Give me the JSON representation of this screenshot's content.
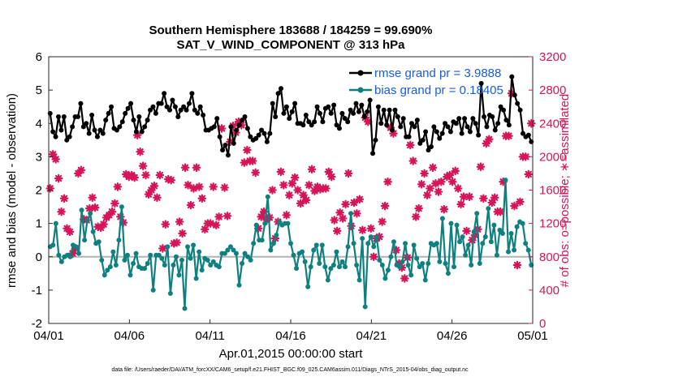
{
  "chart_data": {
    "type": "line",
    "title_line1": "Southern Hemisphere 183688 / 184259 = 99.690%",
    "title_line2": "SAT_V_WIND_COMPONENT @ 313 hPa",
    "ylabel_left": "rmse and bias (model - observation)",
    "ylabel_right": "# of obs: o=possible; ∗=assimilated",
    "xlabel": "Apr.01,2015 00:00:00 start",
    "footnote": "data file: /Users/raeder/DAI/ATM_forcXX/CAM6_setup/f.e21.FHIST_BGC.f09_025.CAM6assim.011/Diags_NTrS_2015-04/obs_diag_output.nc",
    "ylim_left": [
      -2,
      6
    ],
    "ylim_right": [
      0,
      3200
    ],
    "xlim": [
      0,
      30
    ],
    "yticks_left": [
      "-2",
      "-1",
      "0",
      "1",
      "2",
      "3",
      "4",
      "5",
      "6"
    ],
    "yticks_right": [
      "0",
      "400",
      "800",
      "1200",
      "1600",
      "2000",
      "2400",
      "2800",
      "3200"
    ],
    "xticks": [
      {
        "x": 0,
        "label": "04/01"
      },
      {
        "x": 5,
        "label": "04/06"
      },
      {
        "x": 10,
        "label": "04/11"
      },
      {
        "x": 15,
        "label": "04/16"
      },
      {
        "x": 20,
        "label": "04/21"
      },
      {
        "x": 25,
        "label": "04/26"
      },
      {
        "x": 30,
        "label": "05/01"
      }
    ],
    "legend": [
      "rmse grand pr = 3.9888",
      "bias grand pr = 0.18405"
    ],
    "colors": {
      "rmse": "#000000",
      "bias": "#0f8080",
      "obs": "#d6145a",
      "zero_line": "#b3b3b3"
    },
    "series": [
      {
        "name": "rmse grand pr = 3.9888",
        "axis": "left",
        "values": [
          4.3,
          3.75,
          3.6,
          4.2,
          3.8,
          4.2,
          3.5,
          3.6,
          3.9,
          4.2,
          4.2,
          4.6,
          3.9,
          4.0,
          3.7,
          4.25,
          3.8,
          3.6,
          3.8,
          3.7,
          4.1,
          4.3,
          4.5,
          3.85,
          3.8,
          3.9,
          4.05,
          4.3,
          4.45,
          4.6,
          4.1,
          3.75,
          4.2,
          3.75,
          3.9,
          4.1,
          4.4,
          4.5,
          4.3,
          4.6,
          4.6,
          4.9,
          4.5,
          4.4,
          4.7,
          4.5,
          4.2,
          4.4,
          4.5,
          4.4,
          4.6,
          4.9,
          4.4,
          4.3,
          4.5,
          4.25,
          3.8,
          3.8,
          3.85,
          3.9,
          4.15,
          3.6,
          3.2,
          3.35,
          3.05,
          3.9,
          3.4,
          3.8,
          3.95,
          4.1,
          4.2,
          3.85,
          3.6,
          3.5,
          3.55,
          3.65,
          3.8,
          3.7,
          3.45,
          3.7,
          4.6,
          4.2,
          4.9,
          5.05,
          4.3,
          4.5,
          4.15,
          4.35,
          4.6,
          4.0,
          4.0,
          3.95,
          4.25,
          4.05,
          3.95,
          4.05,
          4.5,
          4.3,
          4.05,
          4.45,
          4.5,
          4.3,
          4.55,
          3.95,
          3.85,
          4.3,
          4.15,
          4.05,
          4.4,
          4.3,
          4.6,
          4.35,
          4.55,
          4.2,
          4.35,
          4.7,
          3.1,
          3.5,
          4.5,
          4.0,
          4.4,
          3.95,
          4.4,
          3.8,
          4.4,
          4.2,
          3.9,
          4.15,
          3.6,
          3.6,
          4.0,
          3.9,
          4.1,
          3.4,
          3.5,
          3.75,
          3.2,
          3.3,
          3.9,
          3.75,
          3.55,
          3.7,
          4.0,
          3.9,
          3.75,
          4.05,
          4.0,
          4.15,
          3.7,
          4.15,
          3.9,
          3.75,
          4.15,
          4.0,
          3.65,
          5.2,
          4.2,
          3.9,
          4.25,
          4.2,
          3.8,
          4.0,
          4.5,
          4.4,
          4.1,
          3.95,
          5.4,
          4.85,
          4.6,
          4.4,
          3.7,
          3.6,
          3.65,
          3.45
        ]
      },
      {
        "name": "bias grand pr = 0.18405",
        "axis": "left",
        "values": [
          0.3,
          0.35,
          1.0,
          0.05,
          -0.15,
          0.0,
          0.05,
          0.0,
          0.35,
          0.3,
          0.1,
          1.4,
          0.5,
          1.1,
          1.3,
          0.75,
          0.4,
          0.45,
          -0.1,
          -0.55,
          -0.4,
          -0.3,
          0.15,
          -0.25,
          0.5,
          1.5,
          -0.1,
          0.05,
          -0.55,
          -0.2,
          0.1,
          -0.3,
          -0.35,
          -0.35,
          -0.2,
          0.05,
          -1.0,
          0.05,
          0.05,
          -0.05,
          -0.25,
          0.3,
          -1.1,
          -0.25,
          0.0,
          -0.55,
          -0.1,
          -1.55,
          0.3,
          -0.05,
          0.35,
          -0.65,
          0.15,
          -0.4,
          -0.05,
          -0.1,
          -0.25,
          -0.15,
          -0.25,
          -0.3,
          0.1,
          0.1,
          0.2,
          0.3,
          0.2,
          0.1,
          -0.85,
          -0.2,
          0.1,
          0.0,
          -0.1,
          0.4,
          0.95,
          0.5,
          0.5,
          1.0,
          1.8,
          0.2,
          0.4,
          0.65,
          1.05,
          0.95,
          1.0,
          1.0,
          0.4,
          0.05,
          -0.35,
          0.1,
          0.15,
          -0.15,
          -0.9,
          -0.3,
          0.2,
          0.35,
          -0.2,
          0.35,
          -0.3,
          -0.7,
          -0.35,
          -0.25,
          0.15,
          -0.3,
          -0.15,
          -0.3,
          0.3,
          1.3,
          0.4,
          -0.25,
          -0.7,
          0.55,
          -1.5,
          0.4,
          0.6,
          0.3,
          0.6,
          -0.1,
          -0.25,
          -0.65,
          -0.4,
          0.0,
          0.45,
          -0.25,
          -0.3,
          -0.15,
          0.4,
          -0.25,
          -0.55,
          0.35,
          -0.05,
          -0.3,
          -0.2,
          -0.7,
          -0.2,
          0.4,
          0.35,
          0.4,
          -0.15,
          1.15,
          -0.2,
          -0.5,
          1.0,
          -0.3,
          0.95,
          0.45,
          0.6,
          0.05,
          0.35,
          -0.25,
          0.75,
          1.3,
          -0.2,
          0.4,
          0.6,
          1.45,
          0.45,
          0.95,
          0.05,
          0.8,
          0.7,
          2.3,
          0.15,
          0.7,
          0.2,
          0.9,
          1.05,
          1.0,
          0.4,
          0.2,
          -0.25
        ]
      },
      {
        "name": "obs",
        "axis": "right",
        "marker": "star",
        "values": [
          1620,
          2030,
          1970,
          1740,
          1340,
          1500,
          1140,
          1100,
          840,
          900,
          1800,
          1840,
          1250,
          1240,
          1380,
          1510,
          1390,
          1160,
          1150,
          1190,
          1270,
          1300,
          1340,
          1440,
          1640,
          1280,
          1210,
          1790,
          1760,
          1780,
          1750,
          2260,
          2060,
          1890,
          1780,
          1550,
          1600,
          1650,
          1510,
          1780,
          900,
          1190,
          1730,
          1720,
          960,
          970,
          1220,
          1080,
          1870,
          1660,
          1420,
          1620,
          1870,
          1640,
          1500,
          1130,
          1200,
          1200,
          1640,
          1180,
          1280,
          2340,
          1630,
          1290,
          2180,
          2370,
          2290,
          2420,
          2380,
          1930,
          2080,
          1950,
          1950,
          1810,
          1140,
          1280,
          1340,
          1240,
          1270,
          1600,
          1020,
          1220,
          1820,
          1660,
          1300,
          1540,
          1680,
          1750,
          1600,
          1440,
          1540,
          1480,
          1660,
          1850,
          1590,
          1640,
          1610,
          1620,
          1620,
          1820,
          1760,
          1240,
          1110,
          1330,
          1260,
          1430,
          1800,
          1170,
          1450,
          1320,
          1490,
          1120,
          2470,
          2420,
          1140,
          800,
          1020,
          1040,
          1220,
          1410,
          1700,
          2350,
          2280,
          880,
          720,
          670,
          540,
          790,
          2140,
          1950,
          1280,
          1380,
          1670,
          1800,
          1540,
          1620,
          1870,
          1680,
          1580,
          1700,
          1370,
          1760,
          1780,
          1700,
          1830,
          1620,
          1430,
          1520,
          1110,
          1520,
          1000,
          1060,
          1130,
          1880,
          1500,
          2160,
          2210,
          1450,
          1510,
          1340,
          1340,
          1700,
          2250,
          2250,
          2760,
          1410,
          700,
          1460,
          2000,
          2000,
          1790,
          2400
        ]
      }
    ],
    "grid": false,
    "legend_position": "top-right"
  }
}
